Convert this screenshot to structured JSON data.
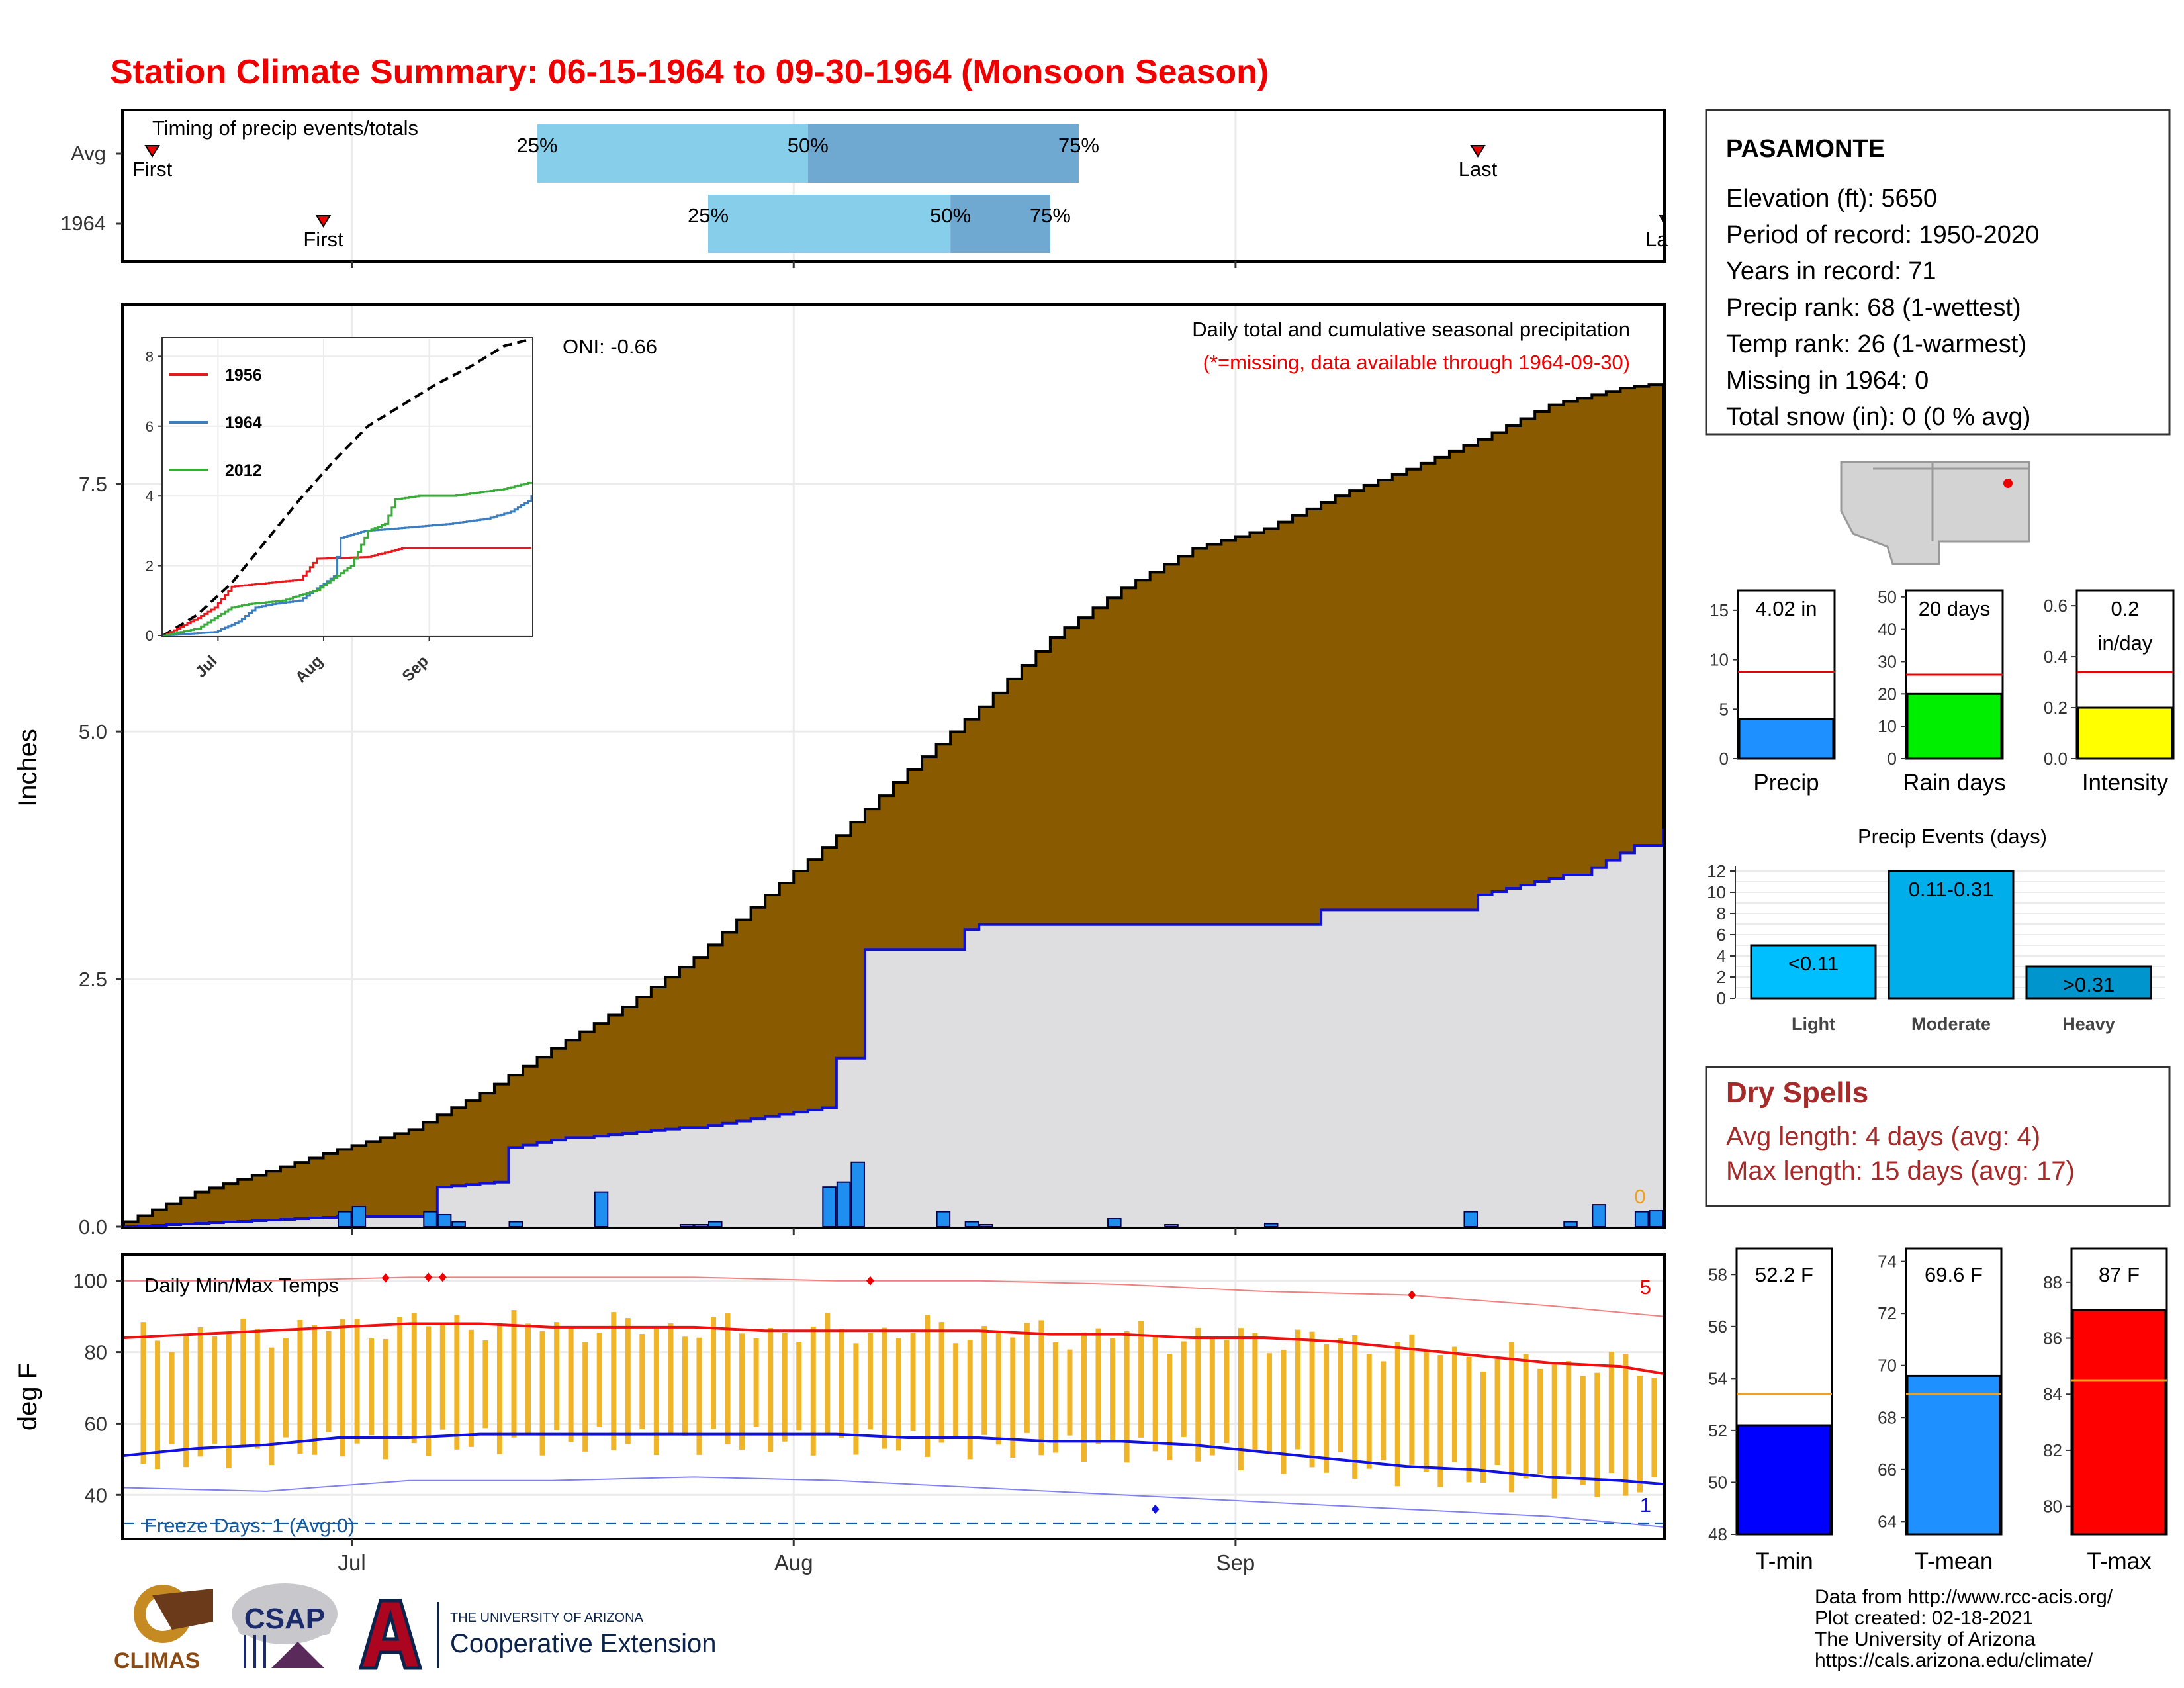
{
  "title": "Station Climate Summary: 06-15-1964 to 09-30-1964 (Monsoon Season)",
  "timing": {
    "heading": "Timing of precip events/totals",
    "rows": [
      {
        "label": "Avg",
        "first_day": 2,
        "last_day": 95,
        "q25": 29,
        "q50": 48,
        "q75": 67
      },
      {
        "label": "1964",
        "first_day": 14,
        "last_day": 107,
        "q25": 41,
        "q50": 58,
        "q75": 65
      }
    ],
    "labels": {
      "first": "First",
      "last": "Last",
      "last_clipped": "La",
      "q25": "25%",
      "q50": "50%",
      "q75": "75%"
    }
  },
  "main": {
    "annotation_title": "Daily total and cumulative seasonal precipitation",
    "annotation_sub": "(*=missing, data available through 1964-09-30)",
    "oni": "ONI: -0.66",
    "ylabel": "Inches",
    "zero_label": "0",
    "colors": {
      "avg_fill": "#8a5a00",
      "year_fill": "#dedee0",
      "year_line": "#1010d0",
      "bars": "#1f8ef1"
    }
  },
  "inset": {
    "legend": [
      "1956",
      "1964",
      "2012"
    ],
    "legend_colors": [
      "#e8191c",
      "#3a7ec0",
      "#3aaa3a"
    ],
    "yticks": [
      "0",
      "2",
      "4",
      "6",
      "8"
    ],
    "xticks": [
      "Jul",
      "Aug",
      "Sep"
    ]
  },
  "temps": {
    "label": "Daily Min/Max Temps",
    "ylabel": "deg F",
    "yticks": [
      "40",
      "60",
      "80",
      "100"
    ],
    "record_high_count": "5",
    "record_low_count": "1",
    "freeze_text": "Freeze Days: 1 (Avg:0)",
    "colors": {
      "max_avg": "#ee1111",
      "min_avg": "#1111dd",
      "bars": "#f0b429"
    }
  },
  "xaxis": {
    "ticks": [
      "Jul",
      "Aug",
      "Sep"
    ]
  },
  "station": {
    "name": "PASAMONTE",
    "lines": [
      "Elevation (ft): 5650",
      "Period of record: 1950-2020",
      "Years in record: 71",
      "Precip rank: 68 (1-wettest)",
      "Temp rank: 26 (1-warmest)",
      "Missing in 1964: 0",
      "Total snow (in): 0 (0 % avg)"
    ]
  },
  "summary": [
    {
      "label": "Precip",
      "value_text": "4.02 in",
      "value_text2": "",
      "value": 4.02,
      "avg": 8.8,
      "ymax": 17,
      "ticks": [
        "0",
        "5",
        "10",
        "15"
      ],
      "tickvals": [
        0,
        5,
        10,
        15
      ],
      "color": "#1e90ff"
    },
    {
      "label": "Rain days",
      "value_text": "20 days",
      "value_text2": "",
      "value": 20,
      "avg": 26,
      "ymax": 52,
      "ticks": [
        "0",
        "10",
        "20",
        "30",
        "40",
        "50"
      ],
      "tickvals": [
        0,
        10,
        20,
        30,
        40,
        50
      ],
      "color": "#00ee00"
    },
    {
      "label": "Intensity",
      "value_text": "0.2",
      "value_text2": "in/day",
      "value": 0.2,
      "avg": 0.34,
      "ymax": 0.66,
      "ticks": [
        "0.0",
        "0.2",
        "0.4",
        "0.6"
      ],
      "tickvals": [
        0,
        0.2,
        0.4,
        0.6
      ],
      "color": "#ffff00"
    }
  ],
  "events": {
    "title": "Precip Events (days)",
    "categories": [
      "Light",
      "Moderate",
      "Heavy"
    ],
    "bar_labels": [
      "<0.11",
      "0.11-0.31",
      ">0.31"
    ],
    "values": [
      5,
      12,
      3
    ],
    "yticks": [
      "0",
      "2",
      "4",
      "6",
      "8",
      "10",
      "12"
    ],
    "colors": [
      "#00bfff",
      "#00aeea",
      "#0095cc"
    ]
  },
  "dry": {
    "title": "Dry Spells",
    "line1": "Avg length: 4 days (avg: 4)",
    "line2": "Max length: 15 days (avg: 17)",
    "color": "#a52a2a"
  },
  "tempsummary": [
    {
      "label": "T-min",
      "value_text": "52.2 F",
      "value": 52.2,
      "avg": 53.4,
      "ymin": 48,
      "ymax": 59,
      "ticks": [
        "48",
        "50",
        "52",
        "54",
        "56",
        "58"
      ],
      "tickvals": [
        48,
        50,
        52,
        54,
        56,
        58
      ],
      "color": "#0000ff"
    },
    {
      "label": "T-mean",
      "value_text": "69.6 F",
      "value": 69.6,
      "avg": 68.9,
      "ymin": 63.5,
      "ymax": 74.5,
      "ticks": [
        "64",
        "66",
        "68",
        "70",
        "72",
        "74"
      ],
      "tickvals": [
        64,
        66,
        68,
        70,
        72,
        74
      ],
      "color": "#1e90ff"
    },
    {
      "label": "T-max",
      "value_text": "87 F",
      "value": 87,
      "avg": 84.5,
      "ymin": 79,
      "ymax": 89.2,
      "ticks": [
        "80",
        "82",
        "84",
        "86",
        "88"
      ],
      "tickvals": [
        80,
        82,
        84,
        86,
        88
      ],
      "color": "#ff0000"
    }
  ],
  "footer": {
    "lines": [
      "Data from http://www.rcc-acis.org/",
      "Plot created: 02-18-2021",
      "The University of Arizona",
      "https://cals.arizona.edu/climate/"
    ],
    "logo_climas": "CLIMAS",
    "logo_csap": "CSAP",
    "logo_ua_top": "THE UNIVERSITY OF ARIZONA",
    "logo_ua_bottom": "Cooperative Extension"
  },
  "chart_data": [
    {
      "type": "area",
      "title": "Daily total and cumulative seasonal precipitation",
      "ylabel": "Inches",
      "x_dates": [
        "06-15",
        "07-01",
        "08-01",
        "09-01",
        "09-30"
      ],
      "ylim": [
        0,
        9.3
      ],
      "series": [
        {
          "name": "Avg",
          "x": [
            0,
            5,
            10,
            15,
            20,
            25,
            30,
            35,
            40,
            45,
            50,
            55,
            60,
            65,
            70,
            75,
            80,
            85,
            90,
            95,
            100,
            105,
            108
          ],
          "values": [
            0.05,
            0.35,
            0.56,
            0.78,
            0.98,
            1.35,
            1.8,
            2.22,
            2.72,
            3.35,
            3.95,
            4.62,
            5.25,
            5.95,
            6.45,
            6.85,
            7.05,
            7.38,
            7.65,
            7.95,
            8.3,
            8.47,
            8.52
          ]
        },
        {
          "name": "1964",
          "x": [
            0,
            15,
            21,
            22,
            26,
            27,
            31,
            32,
            39,
            40,
            49,
            50,
            51,
            52,
            58,
            59,
            60,
            66,
            67,
            68,
            83,
            84,
            94,
            95,
            101,
            102,
            106,
            107,
            108
          ],
          "values": [
            0,
            0.1,
            0.1,
            0.4,
            0.45,
            0.8,
            0.9,
            0.9,
            1.0,
            1.0,
            1.2,
            1.7,
            1.7,
            2.8,
            2.8,
            3.0,
            3.05,
            3.05,
            3.05,
            3.05,
            3.05,
            3.2,
            3.2,
            3.35,
            3.55,
            3.55,
            3.85,
            3.85,
            4.02
          ]
        },
        {
          "name": "daily",
          "x": [
            15,
            16,
            21,
            22,
            23,
            27,
            33,
            39,
            40,
            41,
            49,
            50,
            51,
            57,
            59,
            60,
            69,
            73,
            80,
            94,
            101,
            103,
            106,
            107
          ],
          "values": [
            0.15,
            0.2,
            0.15,
            0.12,
            0.05,
            0.05,
            0.35,
            0.02,
            0.02,
            0.05,
            0.4,
            0.45,
            0.65,
            0.15,
            0.05,
            0.02,
            0.08,
            0.02,
            0.03,
            0.15,
            0.05,
            0.22,
            0.15,
            0.16
          ]
        }
      ]
    },
    {
      "type": "line",
      "title": "",
      "x_dates": [
        "06-15",
        "07-01",
        "08-01",
        "09-01",
        "09-30"
      ],
      "ylim": [
        0,
        8.5
      ],
      "series": [
        {
          "name": "Avg",
          "x": [
            0,
            10,
            20,
            30,
            40,
            50,
            60,
            70,
            80,
            90,
            100,
            108
          ],
          "values": [
            0,
            0.6,
            1.5,
            2.7,
            3.9,
            5.0,
            6.0,
            6.6,
            7.2,
            7.7,
            8.3,
            8.5
          ]
        },
        {
          "name": "1956",
          "x": [
            0,
            8,
            10,
            15,
            20,
            40,
            45,
            60,
            70,
            108
          ],
          "values": [
            0,
            0.4,
            0.5,
            0.8,
            1.4,
            1.6,
            2.2,
            2.25,
            2.5,
            2.5
          ]
        },
        {
          "name": "1964",
          "x": [
            0,
            15,
            22,
            27,
            32,
            40,
            50,
            52,
            59,
            66,
            84,
            95,
            102,
            107,
            108
          ],
          "values": [
            0,
            0.1,
            0.4,
            0.8,
            0.9,
            1.0,
            1.7,
            2.8,
            3.0,
            3.05,
            3.2,
            3.35,
            3.55,
            3.85,
            4.02
          ]
        },
        {
          "name": "2012",
          "x": [
            0,
            10,
            15,
            20,
            25,
            35,
            45,
            55,
            60,
            65,
            68,
            75,
            85,
            100,
            108
          ],
          "values": [
            0,
            0.2,
            0.5,
            0.8,
            0.9,
            1.0,
            1.3,
            2.0,
            3.0,
            3.2,
            3.9,
            4.0,
            4.0,
            4.2,
            4.4
          ]
        }
      ]
    },
    {
      "type": "line",
      "title": "Daily Min/Max Temps",
      "ylabel": "deg F",
      "ylim": [
        28,
        107
      ],
      "series": [
        {
          "name": "max_avg",
          "x": [
            0,
            5,
            10,
            15,
            20,
            25,
            30,
            35,
            40,
            45,
            50,
            55,
            60,
            65,
            70,
            75,
            80,
            85,
            90,
            95,
            100,
            105,
            108
          ],
          "values": [
            84,
            85,
            86,
            87,
            88,
            88,
            87,
            87,
            87,
            86,
            86,
            86,
            86,
            85,
            85,
            84,
            84,
            83,
            81,
            79,
            77,
            76,
            74
          ]
        },
        {
          "name": "min_avg",
          "x": [
            0,
            5,
            10,
            15,
            20,
            25,
            30,
            35,
            40,
            45,
            50,
            55,
            60,
            65,
            70,
            75,
            80,
            85,
            90,
            95,
            100,
            105,
            108
          ],
          "values": [
            51,
            53,
            54,
            56,
            56,
            57,
            57,
            57,
            57,
            57,
            57,
            56,
            56,
            55,
            55,
            54,
            52,
            50,
            48,
            47,
            45,
            44,
            43
          ]
        },
        {
          "name": "record_high",
          "x": [
            0,
            10,
            20,
            30,
            40,
            50,
            60,
            70,
            80,
            90,
            100,
            108
          ],
          "values": [
            100,
            100,
            101,
            101,
            101,
            100,
            100,
            99,
            97,
            96,
            93,
            90
          ]
        },
        {
          "name": "record_low",
          "x": [
            0,
            10,
            20,
            30,
            40,
            50,
            60,
            70,
            80,
            90,
            100,
            108
          ],
          "values": [
            42,
            41,
            44,
            44,
            45,
            44,
            42,
            40,
            38,
            36,
            34,
            31
          ]
        }
      ]
    },
    {
      "type": "bar",
      "title": "Precip Events (days)",
      "categories": [
        "Light",
        "Moderate",
        "Heavy"
      ],
      "values": [
        5,
        12,
        3
      ],
      "ylim": [
        0,
        12.5
      ]
    }
  ]
}
